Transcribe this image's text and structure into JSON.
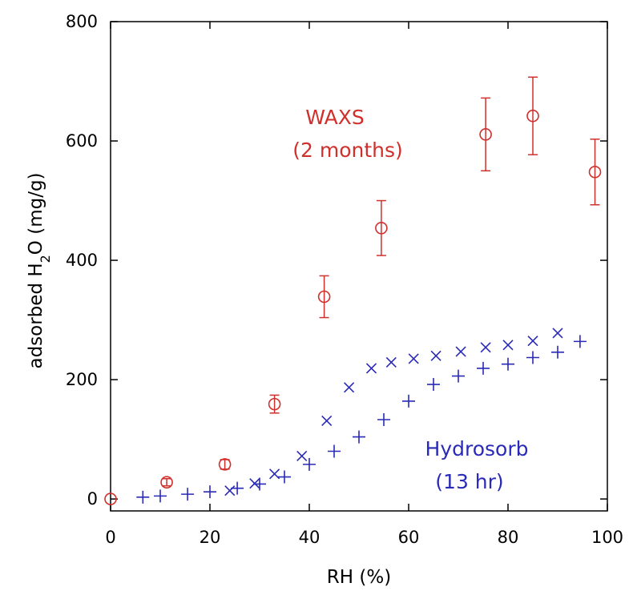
{
  "chart_data": {
    "type": "scatter",
    "xlabel": "RH  (%)",
    "ylabel": "adsorbed H",
    "ylabel_sub": "2",
    "ylabel_after": "O  (mg/g)",
    "xlim": [
      0,
      100
    ],
    "ylim": [
      -20,
      800
    ],
    "xticks": [
      0,
      20,
      40,
      60,
      80,
      100
    ],
    "yticks": [
      0,
      200,
      400,
      600,
      800
    ],
    "grid": false,
    "colors": {
      "red": "#d0302c",
      "blue": "#2a2ab8"
    },
    "annotations": {
      "waxs_line1": "WAXS",
      "waxs_line2": "(2 months)",
      "hydro_line1": "Hydrosorb",
      "hydro_line2": "(13 hr)"
    },
    "series": [
      {
        "marker": "circle",
        "color": "#d0302c",
        "points": [
          {
            "x": 0,
            "y": 0,
            "err": 0
          },
          {
            "x": 11.3,
            "y": 28,
            "err": 6
          },
          {
            "x": 23,
            "y": 58,
            "err": 8
          },
          {
            "x": 33,
            "y": 159,
            "err": 15
          },
          {
            "x": 43,
            "y": 339,
            "err": 35
          },
          {
            "x": 54.5,
            "y": 454,
            "err": 46
          },
          {
            "x": 75.5,
            "y": 611,
            "err": 61
          },
          {
            "x": 85,
            "y": 642,
            "err": 65
          },
          {
            "x": 97.5,
            "y": 548,
            "err": 55
          }
        ]
      },
      {
        "marker": "cross",
        "color": "#2a2ab8",
        "points": [
          {
            "x": 24,
            "y": 14
          },
          {
            "x": 29,
            "y": 26
          },
          {
            "x": 33,
            "y": 42
          },
          {
            "x": 38.5,
            "y": 72
          },
          {
            "x": 43.5,
            "y": 131
          },
          {
            "x": 48,
            "y": 187
          },
          {
            "x": 52.5,
            "y": 219
          },
          {
            "x": 56.5,
            "y": 229
          },
          {
            "x": 61,
            "y": 235
          },
          {
            "x": 65.5,
            "y": 240
          },
          {
            "x": 70.5,
            "y": 247
          },
          {
            "x": 75.5,
            "y": 254
          },
          {
            "x": 80,
            "y": 258
          },
          {
            "x": 85,
            "y": 265
          },
          {
            "x": 90,
            "y": 278
          }
        ]
      },
      {
        "marker": "plus",
        "color": "#2a2ab8",
        "points": [
          {
            "x": 6.5,
            "y": 3
          },
          {
            "x": 10,
            "y": 5
          },
          {
            "x": 15.5,
            "y": 8
          },
          {
            "x": 20,
            "y": 12
          },
          {
            "x": 25.5,
            "y": 18
          },
          {
            "x": 30,
            "y": 25
          },
          {
            "x": 35,
            "y": 37
          },
          {
            "x": 40,
            "y": 58
          },
          {
            "x": 45,
            "y": 80
          },
          {
            "x": 50,
            "y": 104
          },
          {
            "x": 55,
            "y": 133
          },
          {
            "x": 60,
            "y": 164
          },
          {
            "x": 65,
            "y": 192
          },
          {
            "x": 70,
            "y": 206
          },
          {
            "x": 75,
            "y": 219
          },
          {
            "x": 80,
            "y": 226
          },
          {
            "x": 85,
            "y": 237
          },
          {
            "x": 90,
            "y": 246
          },
          {
            "x": 94.5,
            "y": 264
          }
        ]
      }
    ]
  }
}
